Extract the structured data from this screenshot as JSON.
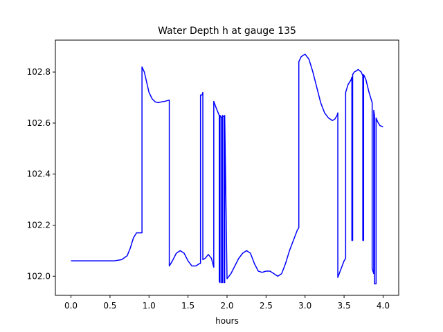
{
  "chart_data": {
    "type": "line",
    "title": "Water Depth h at gauge 135",
    "xlabel": "hours",
    "ylabel": "",
    "xlim": [
      -0.2,
      4.2
    ],
    "ylim": [
      101.925,
      102.925
    ],
    "grid": false,
    "legend": "none",
    "x_ticks": [
      0.0,
      0.5,
      1.0,
      1.5,
      2.0,
      2.5,
      3.0,
      3.5,
      4.0
    ],
    "x_tick_labels": [
      "0.0",
      "0.5",
      "1.0",
      "1.5",
      "2.0",
      "2.5",
      "3.0",
      "3.5",
      "4.0"
    ],
    "y_ticks": [
      102.0,
      102.2,
      102.4,
      102.6,
      102.8
    ],
    "y_tick_labels": [
      "102.0",
      "102.2",
      "102.4",
      "102.6",
      "102.8"
    ],
    "series": [
      {
        "color": "#0000ff",
        "x": [
          0.0,
          0.3,
          0.55,
          0.65,
          0.72,
          0.76,
          0.8,
          0.84,
          0.87,
          0.9,
          0.91,
          0.91,
          0.94,
          0.97,
          1.0,
          1.04,
          1.08,
          1.12,
          1.16,
          1.2,
          1.26,
          1.26,
          1.3,
          1.35,
          1.4,
          1.45,
          1.5,
          1.55,
          1.6,
          1.65,
          1.66,
          1.66,
          1.68,
          1.69,
          1.69,
          1.72,
          1.76,
          1.8,
          1.83,
          1.83,
          1.86,
          1.9,
          1.9,
          1.91,
          1.91,
          1.93,
          1.93,
          1.94,
          1.94,
          1.96,
          1.96,
          1.97,
          1.97,
          2.0,
          2.05,
          2.1,
          2.15,
          2.2,
          2.25,
          2.3,
          2.35,
          2.4,
          2.45,
          2.5,
          2.55,
          2.6,
          2.65,
          2.7,
          2.75,
          2.8,
          2.85,
          2.9,
          2.92,
          2.92,
          2.95,
          3.0,
          3.05,
          3.1,
          3.15,
          3.2,
          3.25,
          3.3,
          3.35,
          3.38,
          3.41,
          3.42,
          3.42,
          3.45,
          3.5,
          3.52,
          3.52,
          3.55,
          3.59,
          3.6,
          3.6,
          3.61,
          3.61,
          3.63,
          3.66,
          3.68,
          3.72,
          3.74,
          3.74,
          3.75,
          3.75,
          3.78,
          3.82,
          3.86,
          3.86,
          3.88,
          3.88,
          3.89,
          3.89,
          3.91,
          3.91,
          3.93,
          3.96,
          4.0
        ],
        "y": [
          102.06,
          102.06,
          102.06,
          102.065,
          102.08,
          102.11,
          102.15,
          102.17,
          102.17,
          102.17,
          102.17,
          102.82,
          102.8,
          102.76,
          102.72,
          102.695,
          102.683,
          102.68,
          102.683,
          102.685,
          102.69,
          102.04,
          102.06,
          102.09,
          102.1,
          102.09,
          102.06,
          102.04,
          102.04,
          102.05,
          102.05,
          102.71,
          102.71,
          102.72,
          102.065,
          102.07,
          102.085,
          102.07,
          102.035,
          102.685,
          102.66,
          102.63,
          101.98,
          101.975,
          102.63,
          102.62,
          101.975,
          101.975,
          102.63,
          102.625,
          101.975,
          101.975,
          102.63,
          101.99,
          102.01,
          102.04,
          102.07,
          102.09,
          102.1,
          102.09,
          102.05,
          102.02,
          102.015,
          102.02,
          102.02,
          102.01,
          102.0,
          102.01,
          102.05,
          102.1,
          102.14,
          102.18,
          102.19,
          102.84,
          102.86,
          102.87,
          102.85,
          102.8,
          102.74,
          102.68,
          102.64,
          102.62,
          102.61,
          102.615,
          102.63,
          102.64,
          101.995,
          102.02,
          102.06,
          102.07,
          102.72,
          102.75,
          102.77,
          102.78,
          102.14,
          102.14,
          102.79,
          102.8,
          102.805,
          102.81,
          102.8,
          102.785,
          102.14,
          102.14,
          102.79,
          102.77,
          102.72,
          102.68,
          102.03,
          102.01,
          102.65,
          102.63,
          101.97,
          101.97,
          102.62,
          102.605,
          102.59,
          102.585
        ]
      }
    ]
  }
}
